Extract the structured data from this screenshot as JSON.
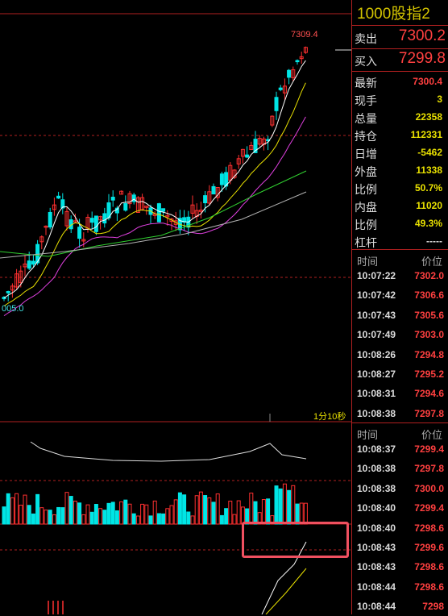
{
  "contract_title": "1000股指2",
  "quote": {
    "sell_label": "卖出",
    "sell_price": "7300.2",
    "buy_label": "买入",
    "buy_price": "7299.8"
  },
  "stats": [
    {
      "label": "最新",
      "value": "7300.4",
      "color": "#ff4040"
    },
    {
      "label": "现手",
      "value": "3",
      "color": "#e8e000"
    },
    {
      "label": "总量",
      "value": "22358",
      "color": "#e8e000"
    },
    {
      "label": "持仓",
      "value": "112331",
      "color": "#e8e000"
    },
    {
      "label": "日增",
      "value": "-5462",
      "color": "#e8e000"
    },
    {
      "label": "外盘",
      "value": "11338",
      "color": "#e8e000"
    },
    {
      "label": "比例",
      "value": "50.7%",
      "color": "#e8e000"
    },
    {
      "label": "内盘",
      "value": "11020",
      "color": "#e8e000"
    },
    {
      "label": "比例",
      "value": "49.3%",
      "color": "#e8e000"
    },
    {
      "label": "杠杆",
      "value": "-----",
      "color": "#dddddd"
    }
  ],
  "ticks_header": {
    "time": "时间",
    "price": "价位"
  },
  "ticks_top": [
    {
      "time": "10:07:22",
      "price": "7302.0"
    },
    {
      "time": "10:07:42",
      "price": "7306.6"
    },
    {
      "time": "10:07:43",
      "price": "7305.6"
    },
    {
      "time": "10:07:49",
      "price": "7303.0"
    },
    {
      "time": "10:08:26",
      "price": "7294.8"
    },
    {
      "time": "10:08:27",
      "price": "7295.2"
    },
    {
      "time": "10:08:31",
      "price": "7294.6"
    },
    {
      "time": "10:08:38",
      "price": "7297.8"
    }
  ],
  "ticks_bottom": [
    {
      "time": "10:08:37",
      "price": "7299.4"
    },
    {
      "time": "10:08:38",
      "price": "7297.8"
    },
    {
      "time": "10:08:38",
      "price": "7300.0"
    },
    {
      "time": "10:08:40",
      "price": "7299.4"
    },
    {
      "time": "10:08:40",
      "price": "7298.6"
    },
    {
      "time": "10:08:43",
      "price": "7299.6"
    },
    {
      "time": "10:08:43",
      "price": "7298.6"
    },
    {
      "time": "10:08:44",
      "price": "7298.6"
    },
    {
      "time": "10:08:44",
      "price": "7298"
    }
  ],
  "chart": {
    "high_label": "7309.4",
    "low_label": "005.0",
    "timeframe_label": "1分10秒"
  },
  "colors": {
    "up": "#ff3030",
    "down": "#00e5e5",
    "border": "#b02020",
    "ma5": "#ffffff",
    "ma10": "#e8e000",
    "ma20": "#e040e0",
    "ma60": "#30d030",
    "ma120": "#b0b0b0"
  }
}
